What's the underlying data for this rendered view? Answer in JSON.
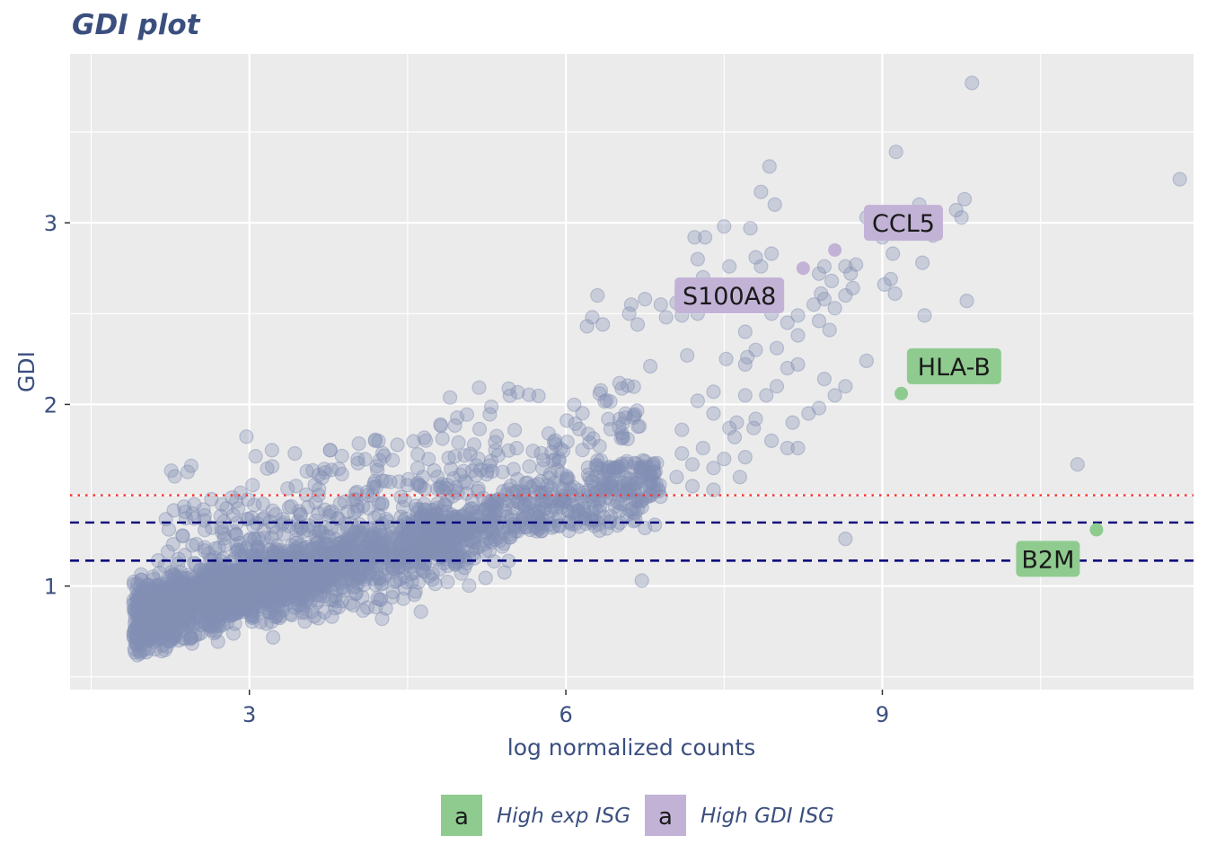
{
  "chart_data": {
    "type": "scatter",
    "title": "GDI plot",
    "xlabel": "log normalized counts",
    "ylabel": "GDI",
    "xlim": [
      1.3,
      11.95
    ],
    "ylim": [
      0.43,
      3.93
    ],
    "x_ticks": [
      3,
      6,
      9
    ],
    "x_tick_labels": [
      "3",
      "6",
      "9"
    ],
    "y_ticks": [
      1,
      2,
      3
    ],
    "y_tick_labels": [
      "1",
      "2",
      "3"
    ],
    "grid": true,
    "legend": {
      "position": "bottom",
      "entries": [
        {
          "key": "a",
          "label": "High exp ISG",
          "color": "#8fcb8f"
        },
        {
          "key": "a",
          "label": "High GDI ISG",
          "color": "#c2b3d6"
        }
      ]
    },
    "reference_lines": [
      {
        "y": 1.5,
        "style": "dotted",
        "color": "#ff2a2a"
      },
      {
        "y": 1.35,
        "style": "dashed",
        "color": "#00007a"
      },
      {
        "y": 1.14,
        "style": "dashed",
        "color": "#00007a"
      }
    ],
    "point_color": "#8290b4",
    "highlighted_genes": [
      {
        "gene": "CCL5",
        "x": 8.55,
        "y": 2.85,
        "label_x": 9.2,
        "label_y": 3.0,
        "group": "High GDI ISG",
        "color": "#c2b3d6"
      },
      {
        "gene": "S100A8",
        "x": 8.25,
        "y": 2.75,
        "label_x": 7.55,
        "label_y": 2.6,
        "group": "High GDI ISG",
        "color": "#c2b3d6"
      },
      {
        "gene": "HLA-B",
        "x": 9.18,
        "y": 2.06,
        "label_x": 9.68,
        "label_y": 2.21,
        "group": "High exp ISG",
        "color": "#8fcb8f"
      },
      {
        "gene": "B2M",
        "x": 11.03,
        "y": 1.31,
        "label_x": 10.57,
        "label_y": 1.15,
        "group": "High exp ISG",
        "color": "#8fcb8f"
      }
    ],
    "outlier_points": [
      [
        9.85,
        3.77
      ],
      [
        11.82,
        3.24
      ],
      [
        9.13,
        3.39
      ],
      [
        7.93,
        3.31
      ],
      [
        7.85,
        3.17
      ],
      [
        7.98,
        3.1
      ],
      [
        9.35,
        3.1
      ],
      [
        9.78,
        3.13
      ],
      [
        9.75,
        3.03
      ],
      [
        9.7,
        3.07
      ],
      [
        7.5,
        2.98
      ],
      [
        7.75,
        2.97
      ],
      [
        7.22,
        2.92
      ],
      [
        7.32,
        2.92
      ],
      [
        9.2,
        2.95
      ],
      [
        9.48,
        2.93
      ],
      [
        9.0,
        2.92
      ],
      [
        8.85,
        3.03
      ],
      [
        9.1,
        2.83
      ],
      [
        7.25,
        2.8
      ],
      [
        7.8,
        2.81
      ],
      [
        7.95,
        2.83
      ],
      [
        7.85,
        2.76
      ],
      [
        7.55,
        2.76
      ],
      [
        8.45,
        2.76
      ],
      [
        8.65,
        2.76
      ],
      [
        8.75,
        2.77
      ],
      [
        9.38,
        2.78
      ],
      [
        7.3,
        2.7
      ],
      [
        8.4,
        2.72
      ],
      [
        8.7,
        2.72
      ],
      [
        9.08,
        2.69
      ],
      [
        9.02,
        2.66
      ],
      [
        8.52,
        2.68
      ],
      [
        9.12,
        2.61
      ],
      [
        8.72,
        2.64
      ],
      [
        8.65,
        2.6
      ],
      [
        8.42,
        2.61
      ],
      [
        9.8,
        2.57
      ],
      [
        9.4,
        2.49
      ],
      [
        7.1,
        2.49
      ],
      [
        7.25,
        2.5
      ],
      [
        7.95,
        2.5
      ],
      [
        8.2,
        2.49
      ],
      [
        8.35,
        2.55
      ],
      [
        8.45,
        2.58
      ],
      [
        8.55,
        2.53
      ],
      [
        7.05,
        2.56
      ],
      [
        6.9,
        2.55
      ],
      [
        6.75,
        2.58
      ],
      [
        6.62,
        2.55
      ],
      [
        6.3,
        2.6
      ],
      [
        6.6,
        2.5
      ],
      [
        7.7,
        2.4
      ],
      [
        8.1,
        2.45
      ],
      [
        8.4,
        2.46
      ],
      [
        8.5,
        2.41
      ],
      [
        8.0,
        2.31
      ],
      [
        8.2,
        2.38
      ],
      [
        7.8,
        2.3
      ],
      [
        7.72,
        2.26
      ],
      [
        7.52,
        2.25
      ],
      [
        7.7,
        2.22
      ],
      [
        8.1,
        2.2
      ],
      [
        8.2,
        2.22
      ],
      [
        8.45,
        2.14
      ],
      [
        8.65,
        2.1
      ],
      [
        8.85,
        2.24
      ],
      [
        8.55,
        2.05
      ],
      [
        8.4,
        1.98
      ],
      [
        8.3,
        1.95
      ],
      [
        8.15,
        1.9
      ],
      [
        7.7,
        2.05
      ],
      [
        7.9,
        2.05
      ],
      [
        8.0,
        2.1
      ],
      [
        7.8,
        1.92
      ],
      [
        7.95,
        1.8
      ],
      [
        8.1,
        1.76
      ],
      [
        8.2,
        1.76
      ],
      [
        7.6,
        1.82
      ],
      [
        7.7,
        1.71
      ],
      [
        7.5,
        1.7
      ],
      [
        7.65,
        1.6
      ],
      [
        7.4,
        1.65
      ],
      [
        7.2,
        1.67
      ],
      [
        7.3,
        1.76
      ],
      [
        7.1,
        1.73
      ],
      [
        6.85,
        1.63
      ],
      [
        7.05,
        1.6
      ],
      [
        7.2,
        1.55
      ],
      [
        7.4,
        1.53
      ],
      [
        7.1,
        1.86
      ],
      [
        7.4,
        2.07
      ],
      [
        7.25,
        2.02
      ],
      [
        7.62,
        1.9
      ],
      [
        7.78,
        1.87
      ],
      [
        6.75,
        1.32
      ],
      [
        6.72,
        1.03
      ],
      [
        8.65,
        1.26
      ],
      [
        10.85,
        1.67
      ],
      [
        7.3,
        2.56
      ],
      [
        6.68,
        2.44
      ],
      [
        6.95,
        2.48
      ],
      [
        7.15,
        2.27
      ],
      [
        6.8,
        2.21
      ],
      [
        6.35,
        2.44
      ],
      [
        6.2,
        2.43
      ],
      [
        6.25,
        2.48
      ],
      [
        7.4,
        1.95
      ],
      [
        7.55,
        1.87
      ]
    ]
  }
}
